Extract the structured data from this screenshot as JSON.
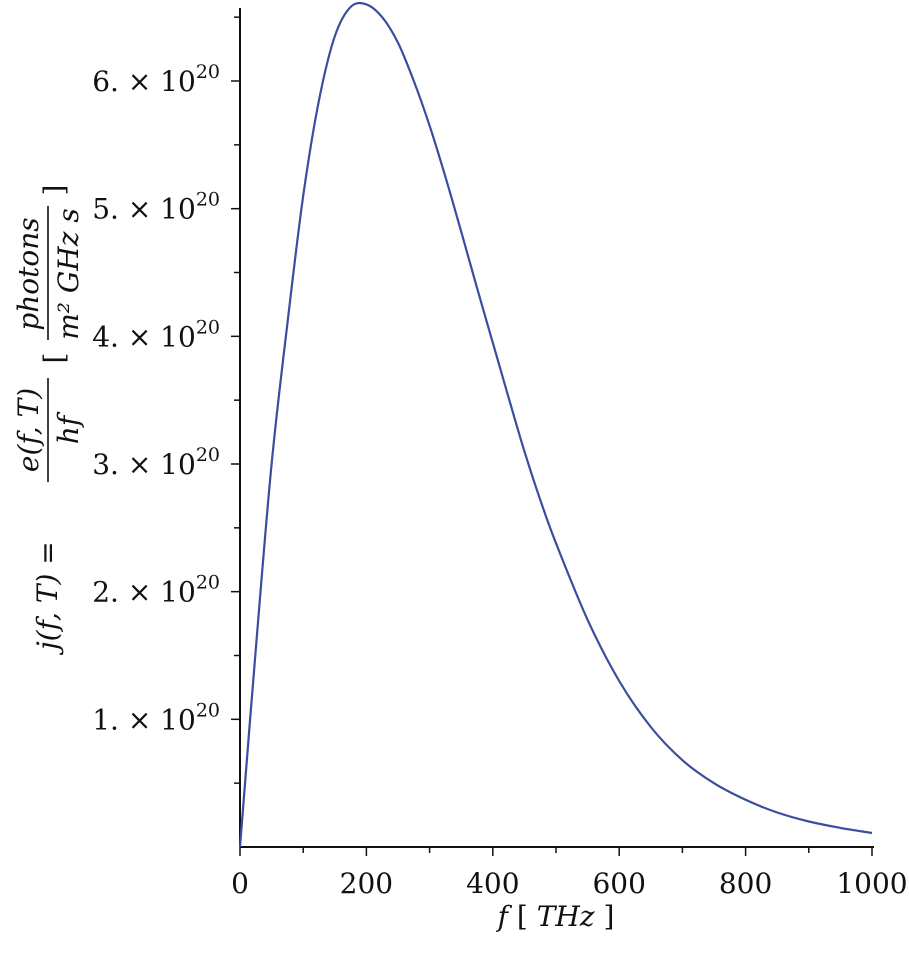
{
  "chart_data": {
    "type": "line",
    "xlabel": {
      "var": "f",
      "bracket_open": "[",
      "unit": "THz",
      "bracket_close": "]"
    },
    "ylabel": {
      "lhs": "j(f, T) =",
      "numerator": "e(f, T)",
      "denominator": "hf",
      "unit_numerator": "photons",
      "unit_denominator": "m² GHz s",
      "bracket_open": "[",
      "bracket_close": "]"
    },
    "xlim": [
      0,
      1000
    ],
    "ylim": [
      0,
      6.6e+20
    ],
    "x_ticks": [
      {
        "value": 0,
        "label": "0"
      },
      {
        "value": 200,
        "label": "200"
      },
      {
        "value": 400,
        "label": "400"
      },
      {
        "value": 600,
        "label": "600"
      },
      {
        "value": 800,
        "label": "800"
      },
      {
        "value": 1000,
        "label": "1000"
      }
    ],
    "y_ticks": [
      {
        "value": 1e+20,
        "mantissa": "1.",
        "times": "×",
        "base": "10",
        "exp": "20"
      },
      {
        "value": 2e+20,
        "mantissa": "2.",
        "times": "×",
        "base": "10",
        "exp": "20"
      },
      {
        "value": 3e+20,
        "mantissa": "3.",
        "times": "×",
        "base": "10",
        "exp": "20"
      },
      {
        "value": 4e+20,
        "mantissa": "4.",
        "times": "×",
        "base": "10",
        "exp": "20"
      },
      {
        "value": 5e+20,
        "mantissa": "5.",
        "times": "×",
        "base": "10",
        "exp": "20"
      },
      {
        "value": 6e+20,
        "mantissa": "6.",
        "times": "×",
        "base": "10",
        "exp": "20"
      }
    ],
    "grid": false,
    "series": [
      {
        "color": "#3a4d9f",
        "x": [
          0,
          25,
          50,
          75,
          100,
          125,
          150,
          175,
          200,
          225,
          250,
          275,
          300,
          325,
          350,
          375,
          400,
          425,
          450,
          475,
          500,
          550,
          600,
          650,
          700,
          750,
          800,
          850,
          900,
          950,
          1000
        ],
        "y": [
          0,
          1.55e+20,
          3e+20,
          4.1e+20,
          5.1e+20,
          5.85e+20,
          6.35e+20,
          6.58e+20,
          6.6e+20,
          6.5e+20,
          6.3e+20,
          6e+20,
          5.65e+20,
          5.25e+20,
          4.82e+20,
          4.38e+20,
          3.95e+20,
          3.52e+20,
          3.1e+20,
          2.72e+20,
          2.38e+20,
          1.78e+20,
          1.3e+20,
          9.4e+19,
          6.8e+19,
          5e+19,
          3.7e+19,
          2.7e+19,
          2e+19,
          1.5e+19,
          1.1e+19
        ]
      }
    ]
  }
}
